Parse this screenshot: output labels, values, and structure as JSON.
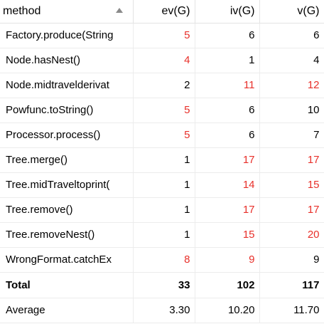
{
  "table": {
    "columns": [
      {
        "label": "method",
        "sorted": "ascending"
      },
      {
        "label": "ev(G)"
      },
      {
        "label": "iv(G)"
      },
      {
        "label": "v(G)"
      }
    ],
    "highlight_color": "#e8302a",
    "rows": [
      {
        "method": "Factory.produce(String",
        "ev": "5",
        "iv": "6",
        "v": "6",
        "ev_red": true,
        "iv_red": false,
        "v_red": false
      },
      {
        "method": "Node.hasNest()",
        "ev": "4",
        "iv": "1",
        "v": "4",
        "ev_red": true,
        "iv_red": false,
        "v_red": false
      },
      {
        "method": "Node.midtravelderivat",
        "ev": "2",
        "iv": "11",
        "v": "12",
        "ev_red": false,
        "iv_red": true,
        "v_red": true
      },
      {
        "method": "Powfunc.toString()",
        "ev": "5",
        "iv": "6",
        "v": "10",
        "ev_red": true,
        "iv_red": false,
        "v_red": false
      },
      {
        "method": "Processor.process()",
        "ev": "5",
        "iv": "6",
        "v": "7",
        "ev_red": true,
        "iv_red": false,
        "v_red": false
      },
      {
        "method": "Tree.merge()",
        "ev": "1",
        "iv": "17",
        "v": "17",
        "ev_red": false,
        "iv_red": true,
        "v_red": true
      },
      {
        "method": "Tree.midTraveltoprint(",
        "ev": "1",
        "iv": "14",
        "v": "15",
        "ev_red": false,
        "iv_red": true,
        "v_red": true
      },
      {
        "method": "Tree.remove()",
        "ev": "1",
        "iv": "17",
        "v": "17",
        "ev_red": false,
        "iv_red": true,
        "v_red": true
      },
      {
        "method": "Tree.removeNest()",
        "ev": "1",
        "iv": "15",
        "v": "20",
        "ev_red": false,
        "iv_red": true,
        "v_red": true
      },
      {
        "method": "WrongFormat.catchEx",
        "ev": "8",
        "iv": "9",
        "v": "9",
        "ev_red": true,
        "iv_red": true,
        "v_red": false
      }
    ],
    "total": {
      "label": "Total",
      "ev": "33",
      "iv": "102",
      "v": "117"
    },
    "average": {
      "label": "Average",
      "ev": "3.30",
      "iv": "10.20",
      "v": "11.70"
    }
  }
}
